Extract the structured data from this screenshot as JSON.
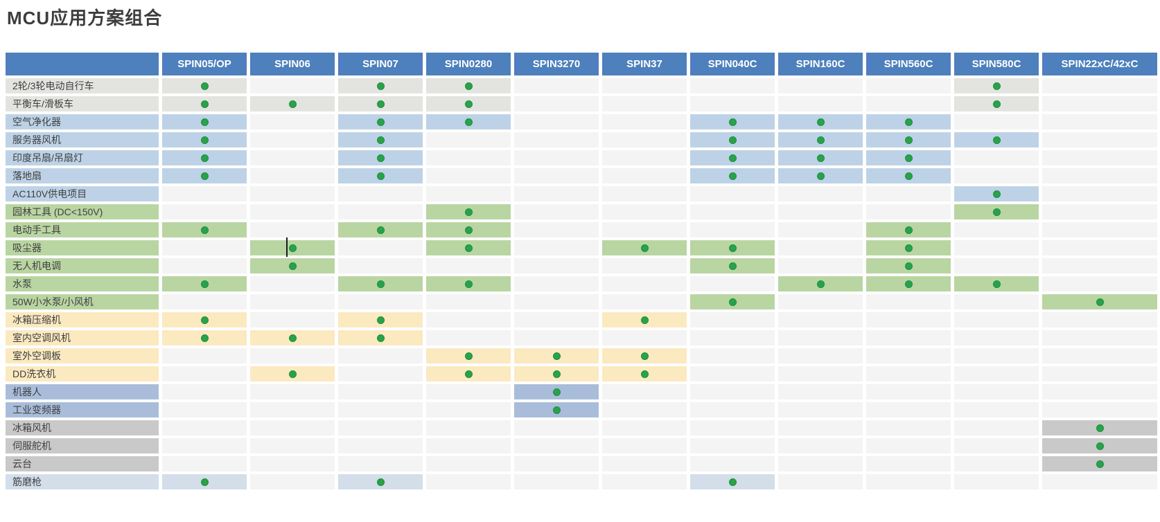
{
  "title": "MCU应用方案组合",
  "chart_data": {
    "type": "table",
    "title": "MCU应用方案组合",
    "columns": [
      "SPIN05/OP",
      "SPIN06",
      "SPIN07",
      "SPIN0280",
      "SPIN3270",
      "SPIN37",
      "SPIN040C",
      "SPIN160C",
      "SPIN560C",
      "SPIN580C",
      "SPIN22xC/42xC"
    ],
    "rows": [
      {
        "label": "2轮/3轮电动自行车",
        "group": "gray",
        "dots": [
          0,
          2,
          3,
          9
        ]
      },
      {
        "label": "平衡车/滑板车",
        "group": "gray",
        "dots": [
          0,
          1,
          2,
          3,
          9
        ]
      },
      {
        "label": "空气净化器",
        "group": "blue",
        "dots": [
          0,
          2,
          3,
          6,
          7,
          8
        ]
      },
      {
        "label": "服务器风机",
        "group": "blue",
        "dots": [
          0,
          2,
          6,
          7,
          8,
          9
        ]
      },
      {
        "label": "印度吊扇/吊扇灯",
        "group": "blue",
        "dots": [
          0,
          2,
          6,
          7,
          8
        ]
      },
      {
        "label": "落地扇",
        "group": "blue",
        "dots": [
          0,
          2,
          6,
          7,
          8
        ]
      },
      {
        "label": "AC110V供电项目",
        "group": "blue",
        "dots": [
          9
        ]
      },
      {
        "label": "园林工具 (DC<150V)",
        "group": "green",
        "dots": [
          3,
          9
        ]
      },
      {
        "label": "电动手工具",
        "group": "green",
        "dots": [
          0,
          2,
          3,
          8
        ]
      },
      {
        "label": "吸尘器",
        "group": "green",
        "dots": [
          1,
          3,
          5,
          6,
          8
        ]
      },
      {
        "label": "无人机电调",
        "group": "green",
        "dots": [
          1,
          6,
          8
        ]
      },
      {
        "label": "水泵",
        "group": "green",
        "dots": [
          0,
          2,
          3,
          7,
          8,
          9
        ]
      },
      {
        "label": "50W小水泵/小风机",
        "group": "green",
        "dots": [
          6,
          10
        ]
      },
      {
        "label": "冰箱压缩机",
        "group": "yellow",
        "dots": [
          0,
          2,
          5
        ]
      },
      {
        "label": "室内空调风机",
        "group": "yellow",
        "dots": [
          0,
          1,
          2
        ]
      },
      {
        "label": "室外空调板",
        "group": "yellow",
        "dots": [
          3,
          4,
          5
        ]
      },
      {
        "label": "DD洗衣机",
        "group": "yellow",
        "dots": [
          1,
          3,
          4,
          5
        ]
      },
      {
        "label": "机器人",
        "group": "periwinkle",
        "dots": [
          4
        ]
      },
      {
        "label": "工业变频器",
        "group": "periwinkle",
        "dots": [
          4
        ]
      },
      {
        "label": "冰箱风机",
        "group": "darkgray",
        "dots": [
          10
        ]
      },
      {
        "label": "伺服舵机",
        "group": "darkgray",
        "dots": [
          10
        ]
      },
      {
        "label": "云台",
        "group": "darkgray",
        "dots": [
          10
        ]
      },
      {
        "label": "筋磨枪",
        "group": "lightblue",
        "dots": [
          0,
          2,
          6
        ]
      }
    ]
  },
  "colors": {
    "header_bg": "#4d80bc",
    "header_text": "#ffffff",
    "plain_cell": "#f4f4f4",
    "dot_fill": "#29a34b",
    "dot_edge": "#1d8d3f",
    "gray": "#e3e3e0",
    "blue": "#bdd2e6",
    "lightblue": "#d3deea",
    "green": "#b9d5a2",
    "yellow": "#fbe9c0",
    "periwinkle": "#a9bddb",
    "darkgray": "#c9c9c9",
    "title_text": "#3d3d3d"
  },
  "artifacts": {
    "text_cursor": {
      "row_index": 9,
      "col_index": 1
    }
  }
}
